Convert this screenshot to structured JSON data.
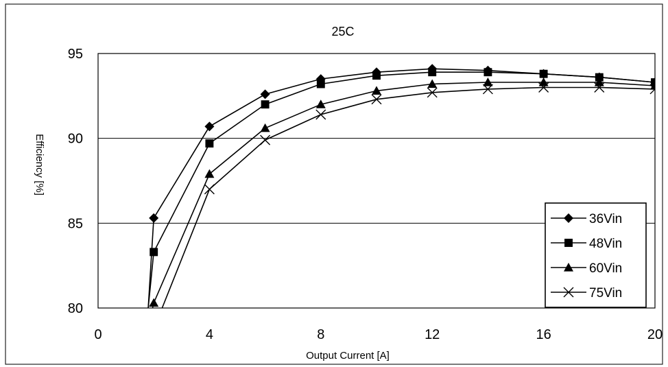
{
  "chart_data": {
    "type": "line",
    "title": "25C",
    "xlabel": "Output Current [A]",
    "ylabel": "Efficiency [%]",
    "xlim": [
      0,
      20
    ],
    "ylim": [
      80,
      95
    ],
    "x_ticks": [
      0,
      4,
      8,
      12,
      16,
      20
    ],
    "y_ticks": [
      80,
      85,
      90,
      95
    ],
    "x_tick_labels": [
      "0",
      "4",
      "8",
      "12",
      "16",
      "20"
    ],
    "y_tick_labels": [
      "80",
      "85",
      "90",
      "95"
    ],
    "grid": "horizontal",
    "legend_position": "bottom-right",
    "series": [
      {
        "name": "36Vin",
        "marker": "diamond",
        "points": [
          [
            1.8,
            80
          ],
          [
            2,
            85.3
          ],
          [
            4,
            90.7
          ],
          [
            6,
            92.6
          ],
          [
            8,
            93.5
          ],
          [
            10,
            93.9
          ],
          [
            12,
            94.1
          ],
          [
            14,
            94.0
          ],
          [
            16,
            93.8
          ],
          [
            18,
            93.6
          ],
          [
            20,
            93.3
          ]
        ]
      },
      {
        "name": "48Vin",
        "marker": "square",
        "points": [
          [
            1.8,
            80
          ],
          [
            2,
            83.3
          ],
          [
            4,
            89.7
          ],
          [
            6,
            92.0
          ],
          [
            8,
            93.2
          ],
          [
            10,
            93.7
          ],
          [
            12,
            93.9
          ],
          [
            14,
            93.9
          ],
          [
            16,
            93.8
          ],
          [
            18,
            93.6
          ],
          [
            20,
            93.3
          ]
        ]
      },
      {
        "name": "60Vin",
        "marker": "triangle",
        "points": [
          [
            1.9,
            79.6
          ],
          [
            2,
            80.3
          ],
          [
            4,
            87.9
          ],
          [
            6,
            90.6
          ],
          [
            8,
            92.0
          ],
          [
            10,
            92.8
          ],
          [
            12,
            93.2
          ],
          [
            14,
            93.3
          ],
          [
            16,
            93.3
          ],
          [
            18,
            93.3
          ],
          [
            20,
            93.1
          ]
        ]
      },
      {
        "name": "75Vin",
        "marker": "x",
        "points": [
          [
            2,
            79.6
          ],
          [
            2.3,
            80
          ],
          [
            4,
            87.0
          ],
          [
            6,
            89.9
          ],
          [
            8,
            91.4
          ],
          [
            10,
            92.3
          ],
          [
            12,
            92.7
          ],
          [
            14,
            92.9
          ],
          [
            16,
            93.0
          ],
          [
            18,
            93.0
          ],
          [
            20,
            92.9
          ]
        ]
      }
    ]
  }
}
